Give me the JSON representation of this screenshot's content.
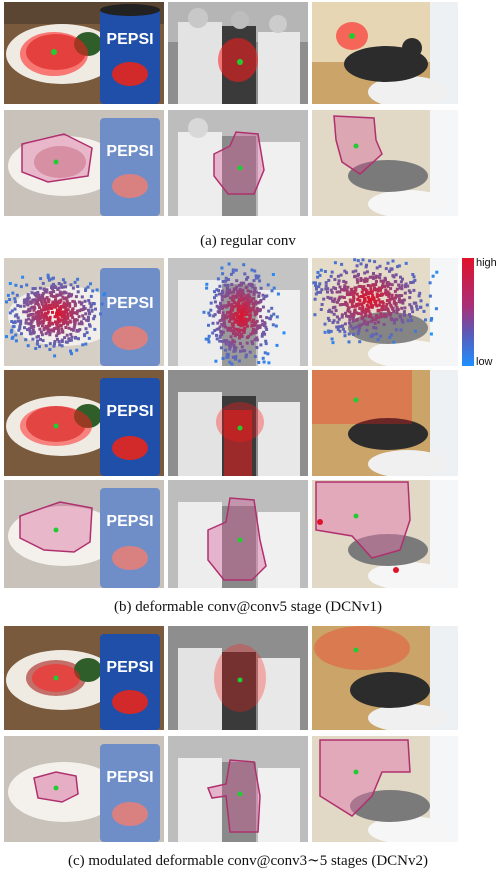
{
  "captions": {
    "a": "(a)  regular conv",
    "b": "(b)  deformable conv@conv5 stage (DCNv1)",
    "c": "(c)  modulated deformable conv@conv3∼5 stages (DCNv2)"
  },
  "colorbar": {
    "high": "high",
    "low": "low",
    "high_color": "#e0122a",
    "low_color": "#1e90ff"
  },
  "columns": [
    "food-pepsi",
    "baseball-players",
    "cat-toilet"
  ],
  "rows": [
    {
      "id": "a1",
      "group": "a",
      "kind": "effective-sampling-locations"
    },
    {
      "id": "a2",
      "group": "a",
      "kind": "error-bounded-saliency-region"
    },
    {
      "id": "b1",
      "group": "b",
      "kind": "effective-receptive-field"
    },
    {
      "id": "b2",
      "group": "b",
      "kind": "effective-sampling-locations"
    },
    {
      "id": "b3",
      "group": "b",
      "kind": "error-bounded-saliency-region"
    },
    {
      "id": "c1",
      "group": "c",
      "kind": "effective-sampling-locations"
    },
    {
      "id": "c2",
      "group": "c",
      "kind": "error-bounded-saliency-region"
    }
  ]
}
